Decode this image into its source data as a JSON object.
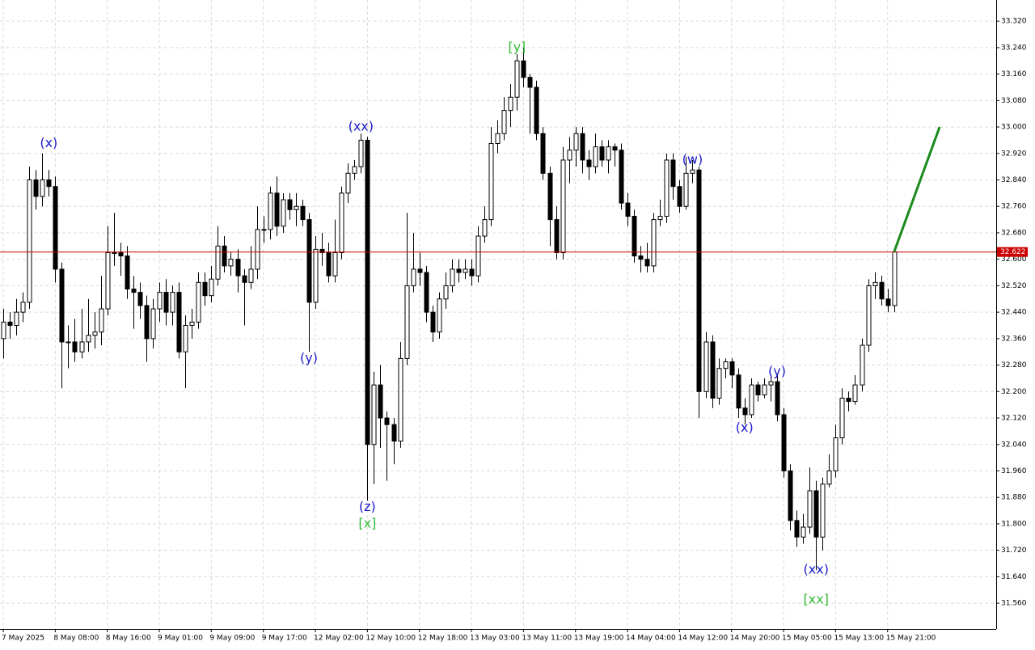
{
  "chart_data": {
    "type": "candlestick",
    "candles": {
      "open": [
        32.36,
        32.41,
        32.4,
        32.44,
        32.47,
        32.84,
        32.79,
        32.84,
        32.82,
        32.57,
        32.35,
        32.35,
        32.32,
        32.35,
        32.37,
        32.38,
        32.45,
        32.62,
        32.62,
        32.61,
        32.51,
        32.5,
        32.46,
        32.36,
        32.45,
        32.5,
        32.44,
        32.5,
        32.32,
        32.4,
        32.41,
        32.53,
        32.49,
        32.54,
        32.64,
        32.58,
        32.6,
        32.55,
        32.53,
        32.57,
        32.69,
        32.69,
        32.8,
        32.7,
        32.78,
        32.75,
        32.76,
        32.72,
        32.47,
        32.63,
        32.62,
        32.55,
        32.62,
        32.8,
        32.86,
        32.88,
        32.96,
        32.04,
        32.22,
        32.12,
        32.1,
        32.05,
        32.3,
        32.52,
        32.57,
        32.56,
        32.44,
        32.38,
        32.48,
        32.52,
        32.57,
        32.56,
        32.57,
        32.55,
        32.67,
        32.72,
        32.95,
        32.98,
        33.05,
        33.09,
        33.2,
        33.15,
        33.12,
        32.98,
        32.86,
        32.72,
        32.62,
        32.9,
        32.93,
        32.98,
        32.9,
        32.88,
        32.94,
        32.9,
        32.94,
        32.93,
        32.77,
        32.73,
        32.61,
        32.6,
        32.58,
        32.72,
        32.73,
        32.9,
        32.82,
        32.76,
        32.86,
        32.87,
        32.2,
        32.35,
        32.18,
        32.27,
        32.29,
        32.25,
        32.15,
        32.13,
        32.22,
        32.19,
        32.22,
        32.23,
        32.13,
        31.96,
        31.81,
        31.76,
        31.79,
        31.9,
        31.76,
        31.92,
        31.96,
        32.06,
        32.18,
        32.17,
        32.22,
        32.34,
        32.52,
        32.53,
        32.48,
        32.46
      ],
      "high": [
        32.45,
        32.44,
        32.48,
        32.5,
        32.88,
        32.87,
        32.92,
        32.87,
        32.85,
        32.59,
        32.4,
        32.42,
        32.45,
        32.48,
        32.44,
        32.55,
        32.7,
        32.74,
        32.65,
        32.64,
        32.55,
        32.53,
        32.49,
        32.48,
        32.53,
        32.54,
        32.52,
        32.53,
        32.43,
        32.45,
        32.56,
        32.56,
        32.58,
        32.7,
        32.67,
        32.62,
        32.63,
        32.57,
        32.64,
        32.76,
        32.73,
        32.82,
        32.85,
        32.8,
        32.8,
        32.8,
        32.78,
        32.74,
        32.67,
        32.68,
        32.65,
        32.72,
        32.82,
        32.89,
        32.9,
        32.98,
        32.97,
        32.26,
        32.28,
        32.14,
        32.12,
        32.35,
        32.74,
        32.68,
        32.62,
        32.58,
        32.46,
        32.5,
        32.56,
        32.6,
        32.6,
        32.6,
        32.6,
        32.7,
        32.76,
        33.0,
        33.02,
        33.09,
        33.13,
        33.22,
        33.24,
        33.16,
        33.14,
        33.0,
        32.88,
        32.76,
        32.94,
        32.97,
        33.0,
        33.0,
        32.93,
        32.98,
        32.96,
        32.96,
        32.95,
        32.95,
        32.8,
        32.75,
        32.64,
        32.65,
        32.74,
        32.78,
        32.92,
        32.92,
        32.84,
        32.91,
        32.9,
        32.88,
        32.38,
        32.37,
        32.3,
        32.3,
        32.3,
        32.27,
        32.18,
        32.24,
        32.23,
        32.24,
        32.25,
        32.25,
        32.15,
        31.98,
        31.84,
        31.83,
        31.97,
        31.93,
        31.94,
        32.01,
        32.1,
        32.21,
        32.2,
        32.25,
        32.36,
        32.54,
        32.56,
        32.55,
        32.51,
        32.63
      ],
      "low": [
        32.3,
        32.36,
        32.37,
        32.41,
        32.45,
        32.75,
        32.76,
        32.79,
        32.53,
        32.21,
        32.27,
        32.29,
        32.3,
        32.32,
        32.33,
        32.34,
        32.43,
        32.58,
        32.55,
        32.48,
        32.39,
        32.42,
        32.29,
        32.33,
        32.41,
        32.4,
        32.4,
        32.3,
        32.21,
        32.36,
        32.39,
        32.46,
        32.47,
        32.52,
        32.56,
        32.55,
        32.5,
        32.4,
        32.51,
        32.54,
        32.65,
        32.66,
        32.67,
        32.68,
        32.72,
        32.7,
        32.7,
        32.32,
        32.45,
        32.58,
        32.53,
        32.53,
        32.6,
        32.77,
        32.84,
        32.86,
        31.87,
        31.92,
        32.03,
        31.93,
        31.98,
        32.03,
        32.28,
        32.5,
        32.52,
        32.41,
        32.35,
        32.36,
        32.45,
        32.5,
        32.53,
        32.54,
        32.52,
        32.53,
        32.65,
        32.7,
        32.92,
        32.96,
        33.0,
        33.05,
        33.12,
        32.98,
        32.96,
        32.84,
        32.64,
        32.6,
        32.6,
        32.83,
        32.88,
        32.86,
        32.84,
        32.86,
        32.88,
        32.86,
        32.88,
        32.75,
        32.7,
        32.59,
        32.56,
        32.56,
        32.56,
        32.7,
        32.71,
        32.78,
        32.74,
        32.75,
        32.83,
        32.12,
        32.18,
        32.15,
        32.16,
        32.24,
        32.21,
        32.12,
        32.1,
        32.12,
        32.17,
        32.18,
        32.17,
        32.11,
        31.94,
        31.78,
        31.73,
        31.74,
        31.77,
        31.66,
        31.72,
        31.91,
        31.94,
        32.04,
        32.14,
        32.16,
        32.2,
        32.32,
        32.48,
        32.46,
        32.44,
        32.44
      ],
      "close": [
        32.41,
        32.4,
        32.44,
        32.47,
        32.84,
        32.79,
        32.84,
        32.82,
        32.57,
        32.35,
        32.35,
        32.32,
        32.35,
        32.37,
        32.38,
        32.45,
        32.62,
        32.62,
        32.61,
        32.51,
        32.5,
        32.46,
        32.36,
        32.45,
        32.5,
        32.44,
        32.5,
        32.32,
        32.4,
        32.41,
        32.53,
        32.49,
        32.54,
        32.64,
        32.58,
        32.6,
        32.55,
        32.53,
        32.57,
        32.69,
        32.69,
        32.8,
        32.7,
        32.78,
        32.75,
        32.76,
        32.72,
        32.47,
        32.63,
        32.62,
        32.55,
        32.62,
        32.8,
        32.86,
        32.88,
        32.96,
        32.04,
        32.22,
        32.12,
        32.1,
        32.05,
        32.3,
        32.52,
        32.57,
        32.56,
        32.44,
        32.38,
        32.48,
        32.52,
        32.57,
        32.56,
        32.57,
        32.55,
        32.67,
        32.72,
        32.95,
        32.98,
        33.05,
        33.09,
        33.2,
        33.15,
        33.12,
        32.98,
        32.86,
        32.72,
        32.62,
        32.9,
        32.93,
        32.98,
        32.9,
        32.88,
        32.94,
        32.9,
        32.94,
        32.93,
        32.77,
        32.73,
        32.61,
        32.6,
        32.58,
        32.72,
        32.73,
        32.9,
        32.82,
        32.76,
        32.86,
        32.87,
        32.2,
        32.35,
        32.18,
        32.27,
        32.29,
        32.25,
        32.15,
        32.13,
        32.22,
        32.19,
        32.22,
        32.23,
        32.13,
        31.96,
        31.81,
        31.76,
        31.79,
        31.9,
        31.76,
        31.92,
        31.96,
        32.06,
        32.18,
        32.17,
        32.22,
        32.34,
        32.52,
        32.53,
        32.48,
        32.46,
        32.622
      ]
    },
    "up_color": "#ffffff",
    "down_color": "#000000",
    "outline_color": "#000000",
    "xlim": [
      -0.5,
      152.7
    ],
    "xticks": [
      {
        "value": 0,
        "label": "7 May 2025"
      },
      {
        "value": 8,
        "label": "8 May 08:00"
      },
      {
        "value": 16,
        "label": "8 May 16:00"
      },
      {
        "value": 24,
        "label": "9 May 01:00"
      },
      {
        "value": 32,
        "label": "9 May 09:00"
      },
      {
        "value": 40,
        "label": "9 May 17:00"
      },
      {
        "value": 48,
        "label": "12 May 02:00"
      },
      {
        "value": 56,
        "label": "12 May 10:00"
      },
      {
        "value": 64,
        "label": "12 May 18:00"
      },
      {
        "value": 72,
        "label": "13 May 03:00"
      },
      {
        "value": 80,
        "label": "13 May 11:00"
      },
      {
        "value": 88,
        "label": "13 May 19:00"
      },
      {
        "value": 96,
        "label": "14 May 04:00"
      },
      {
        "value": 104,
        "label": "14 May 12:00"
      },
      {
        "value": 112,
        "label": "14 May 20:00"
      },
      {
        "value": 120,
        "label": "15 May 05:00"
      },
      {
        "value": 128,
        "label": "15 May 13:00"
      },
      {
        "value": 136,
        "label": "15 May 21:00"
      }
    ],
    "ylim": [
      31.482,
      33.384
    ],
    "yticks": [
      {
        "value": 31.56,
        "label": "31.560"
      },
      {
        "value": 31.64,
        "label": "31.640"
      },
      {
        "value": 31.72,
        "label": "31.720"
      },
      {
        "value": 31.8,
        "label": "31.800"
      },
      {
        "value": 31.88,
        "label": "31.880"
      },
      {
        "value": 31.96,
        "label": "31.960"
      },
      {
        "value": 32.04,
        "label": "32.040"
      },
      {
        "value": 32.12,
        "label": "32.120"
      },
      {
        "value": 32.2,
        "label": "32.200"
      },
      {
        "value": 32.28,
        "label": "32.280"
      },
      {
        "value": 32.36,
        "label": "32.360"
      },
      {
        "value": 32.44,
        "label": "32.440"
      },
      {
        "value": 32.52,
        "label": "32.520"
      },
      {
        "value": 32.6,
        "label": "32.600"
      },
      {
        "value": 32.68,
        "label": "32.680"
      },
      {
        "value": 32.76,
        "label": "32.760"
      },
      {
        "value": 32.84,
        "label": "32.840"
      },
      {
        "value": 32.92,
        "label": "32.920"
      },
      {
        "value": 33.0,
        "label": "33.000"
      },
      {
        "value": 33.08,
        "label": "33.080"
      },
      {
        "value": 33.16,
        "label": "33.160"
      },
      {
        "value": 33.24,
        "label": "33.240"
      },
      {
        "value": 33.32,
        "label": "33.320"
      }
    ],
    "grid": true,
    "current_price": {
      "value": 32.622,
      "color": "#cc0000"
    },
    "projection": {
      "x": [
        137,
        144
      ],
      "values": [
        32.622,
        33.0
      ],
      "color": "#1a8a1a"
    },
    "annotations": [
      {
        "text": "(x)",
        "x": 7,
        "y": 32.95,
        "color": "#1a1acc"
      },
      {
        "text": "(y)",
        "x": 47,
        "y": 32.3,
        "color": "#1a1acc"
      },
      {
        "text": "(xx)",
        "x": 55,
        "y": 33.0,
        "color": "#1a1acc"
      },
      {
        "text": "(z)",
        "x": 56,
        "y": 31.85,
        "color": "#1a1acc"
      },
      {
        "text": "[x]",
        "x": 56,
        "y": 31.8,
        "color": "#33bb33"
      },
      {
        "text": "[y]",
        "x": 79,
        "y": 33.24,
        "color": "#33bb33"
      },
      {
        "text": "(w)",
        "x": 106,
        "y": 32.9,
        "color": "#1a1acc"
      },
      {
        "text": "(x)",
        "x": 114,
        "y": 32.09,
        "color": "#1a1acc"
      },
      {
        "text": "(y)",
        "x": 119,
        "y": 32.26,
        "color": "#1a1acc"
      },
      {
        "text": "(xx)",
        "x": 125,
        "y": 31.66,
        "color": "#1a1acc"
      },
      {
        "text": "[xx]",
        "x": 125,
        "y": 31.57,
        "color": "#33bb33"
      }
    ]
  }
}
